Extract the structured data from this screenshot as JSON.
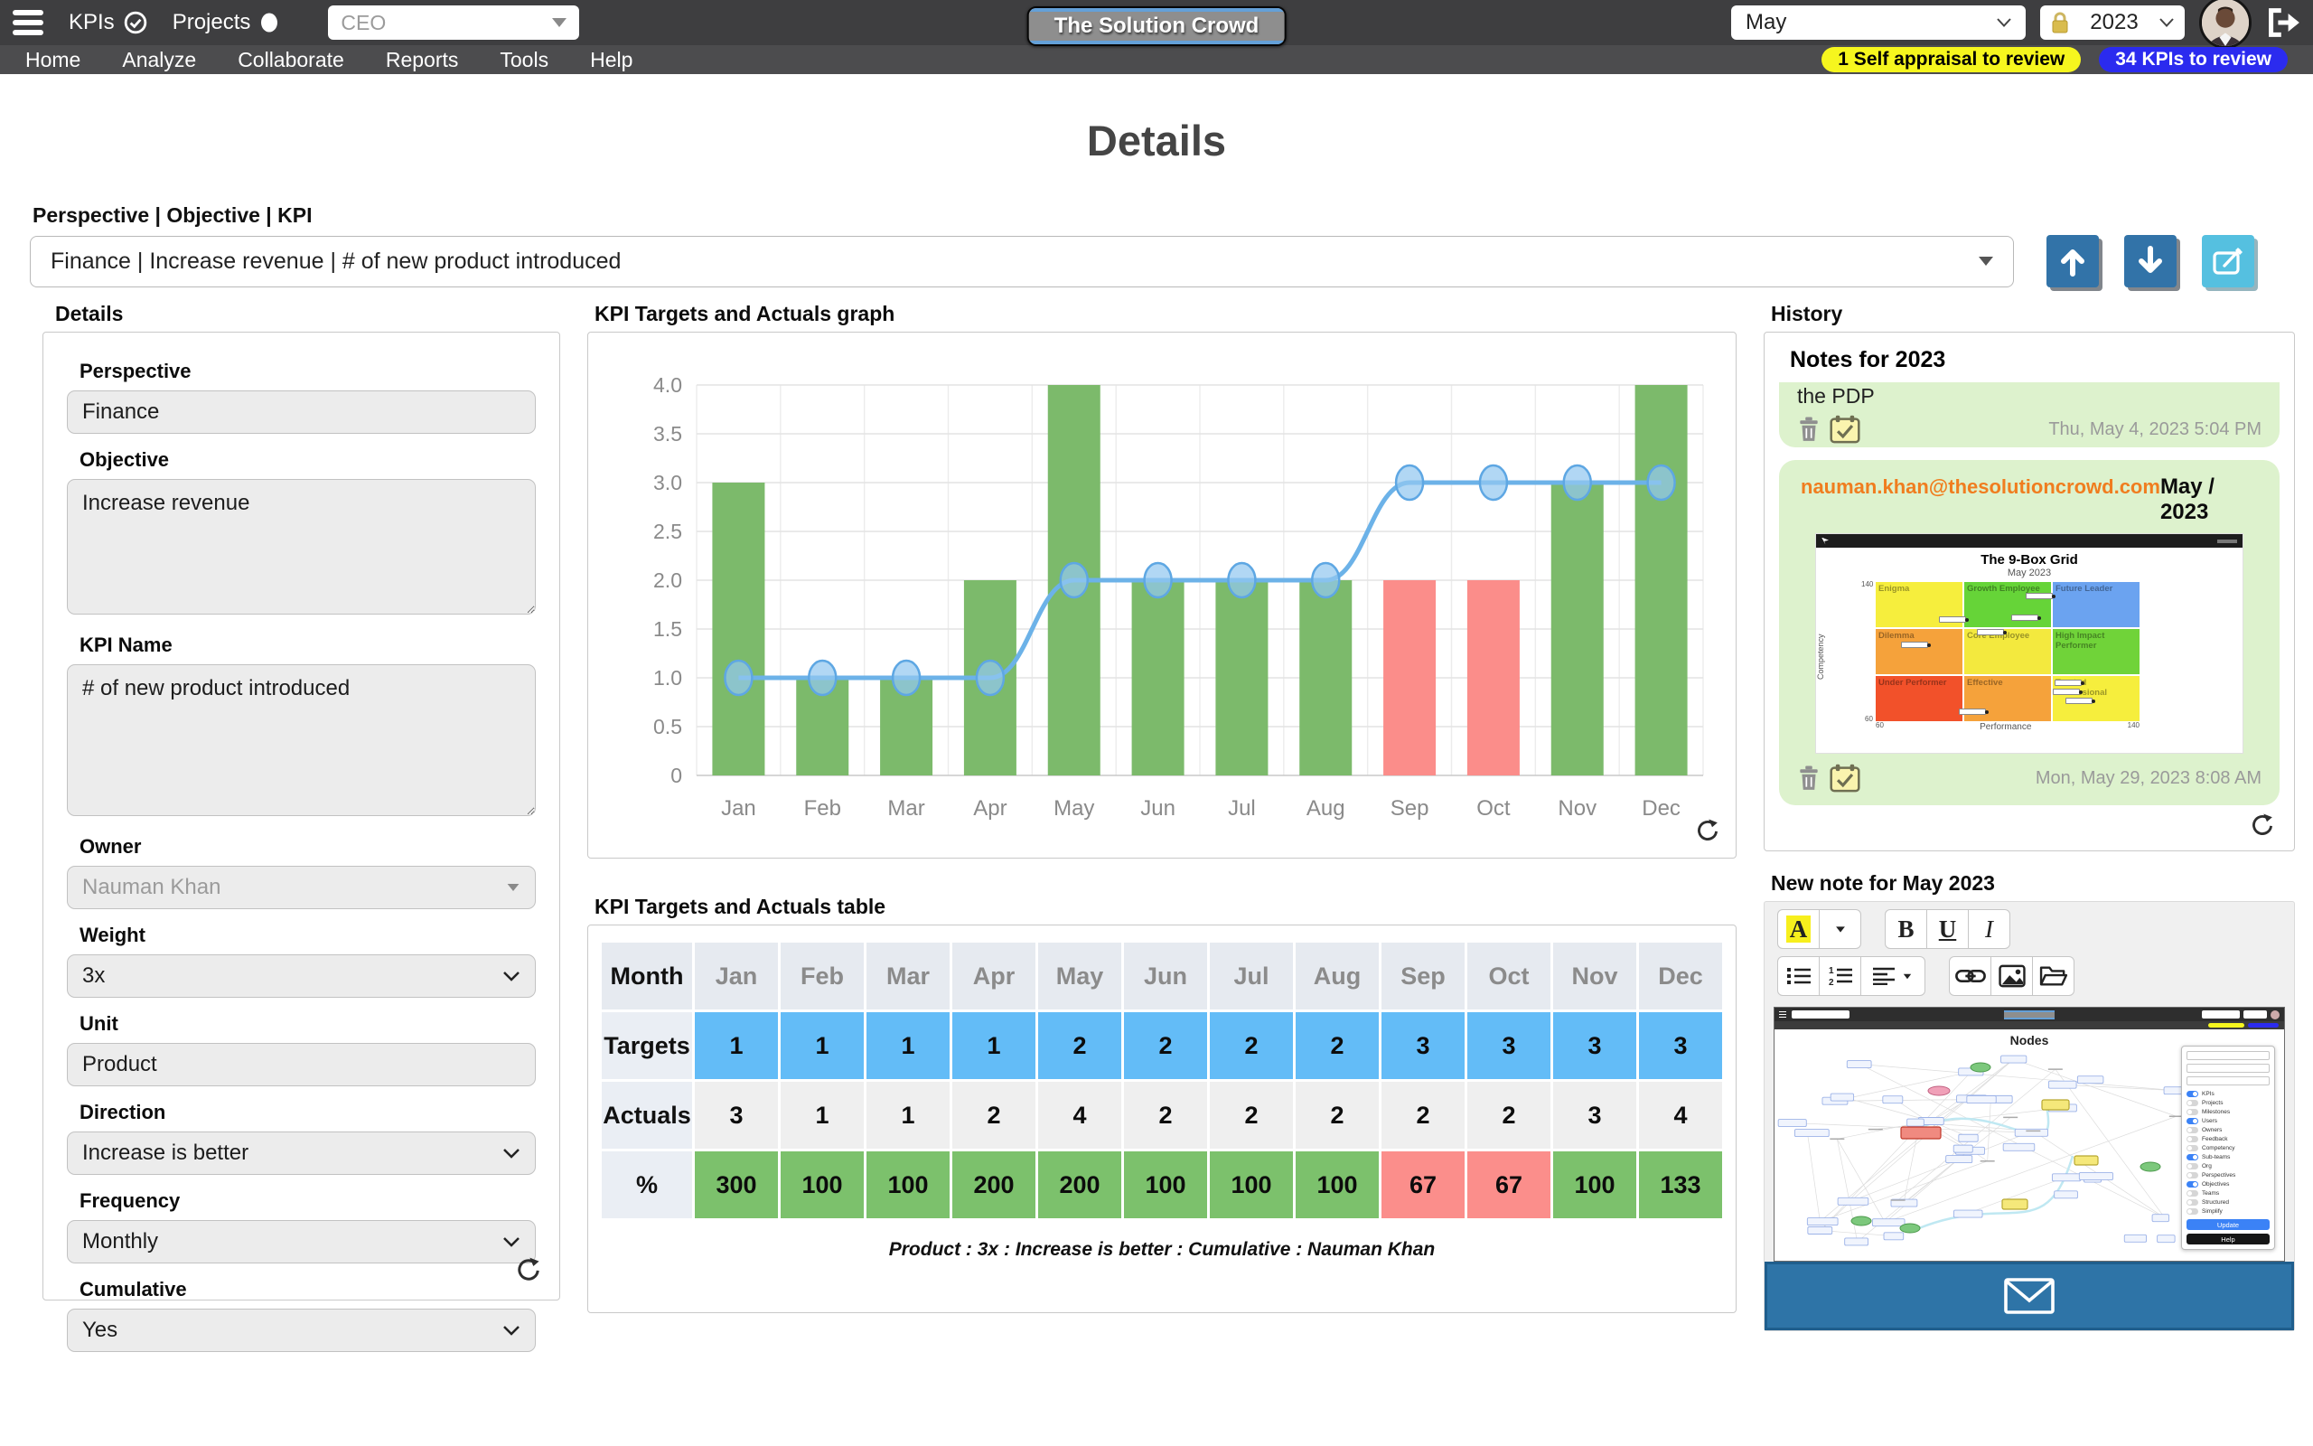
{
  "colors": {
    "topbar_bg": "#3e3e40",
    "navbar_bg": "#4c4c4e",
    "accent_blue": "#3273a8",
    "edit_cyan": "#55c0e0",
    "badge_yellow": "#f6f61e",
    "badge_blue": "#2b2bef",
    "bar_green": "#7cba6b",
    "bar_red": "#fb8d8a",
    "line_blue": "#6cb2e8",
    "target_cell_blue": "#63bcf7",
    "percent_green": "#7cc16c",
    "percent_red": "#fb8e8b",
    "note_green": "#ddf2cd",
    "email_orange": "#f07d1f",
    "send_blue": "#2e74a7",
    "highlight_yellow": "#f7ef1d"
  },
  "topbar": {
    "kpis_label": "KPIs",
    "projects_label": "Projects",
    "role_select": {
      "value": "CEO"
    },
    "brand": "The Solution Crowd",
    "month_select": {
      "value": "May"
    },
    "year_select": {
      "value": "2023"
    }
  },
  "nav": {
    "items": [
      "Home",
      "Analyze",
      "Collaborate",
      "Reports",
      "Tools",
      "Help"
    ],
    "badges": [
      {
        "label": "1 Self appraisal to review",
        "style": "yellow"
      },
      {
        "label": "34 KPIs to review",
        "style": "blue"
      }
    ]
  },
  "page": {
    "title": "Details"
  },
  "selector": {
    "label": "Perspective | Objective | KPI",
    "value": "Finance | Increase revenue | # of new product introduced"
  },
  "details_panel": {
    "heading": "Details",
    "fields": [
      {
        "label": "Perspective",
        "value": "Finance",
        "type": "input"
      },
      {
        "label": "Objective",
        "value": "Increase revenue",
        "type": "textarea",
        "height": 150
      },
      {
        "label": "KPI Name",
        "value": "# of new product introduced",
        "type": "textarea",
        "height": 168
      },
      {
        "label": "Owner",
        "value": "Nauman Khan",
        "type": "select_disabled"
      },
      {
        "label": "Weight",
        "value": "3x",
        "type": "select"
      },
      {
        "label": "Unit",
        "value": "Product",
        "type": "input"
      },
      {
        "label": "Direction",
        "value": "Increase is better",
        "type": "select"
      },
      {
        "label": "Frequency",
        "value": "Monthly",
        "type": "select"
      },
      {
        "label": "Cumulative",
        "value": "Yes",
        "type": "select"
      }
    ]
  },
  "chart_section": {
    "heading": "KPI Targets and Actuals graph"
  },
  "chart_data": {
    "type": "bar",
    "categories": [
      "Jan",
      "Feb",
      "Mar",
      "Apr",
      "May",
      "Jun",
      "Jul",
      "Aug",
      "Sep",
      "Oct",
      "Nov",
      "Dec"
    ],
    "series": [
      {
        "name": "Actuals",
        "type": "bar",
        "values": [
          3,
          1,
          1,
          2,
          4,
          2,
          2,
          2,
          2,
          2,
          3,
          4
        ]
      },
      {
        "name": "Targets",
        "type": "line",
        "values": [
          1,
          1,
          1,
          1,
          2,
          2,
          2,
          2,
          3,
          3,
          3,
          3
        ]
      }
    ],
    "ylim": [
      0,
      4
    ],
    "ytick_step": 0.5,
    "grid": true,
    "bar_rule": "green when actual >= target, red otherwise",
    "title": "KPI Targets and Actuals graph",
    "xlabel": "",
    "ylabel": ""
  },
  "table_section": {
    "heading": "KPI Targets and Actuals table",
    "month_header": "Month",
    "row_labels": {
      "targets": "Targets",
      "actuals": "Actuals",
      "percent": "%"
    },
    "months": [
      "Jan",
      "Feb",
      "Mar",
      "Apr",
      "May",
      "Jun",
      "Jul",
      "Aug",
      "Sep",
      "Oct",
      "Nov",
      "Dec"
    ],
    "targets": [
      1,
      1,
      1,
      1,
      2,
      2,
      2,
      2,
      3,
      3,
      3,
      3
    ],
    "actuals": [
      3,
      1,
      1,
      2,
      4,
      2,
      2,
      2,
      2,
      2,
      3,
      4
    ],
    "percent": [
      300,
      100,
      100,
      200,
      200,
      100,
      100,
      100,
      67,
      67,
      100,
      133
    ],
    "caption": "Product : 3x : Increase is better : Cumulative : Nauman Khan"
  },
  "history": {
    "heading": "History",
    "notes_title": "Notes for 2023",
    "note1": {
      "text_fragment": "the PDP",
      "timestamp": "Thu, May 4, 2023 5:04 PM"
    },
    "note2": {
      "email": "nauman.khan@thesolutioncrowd.com",
      "period": "May / 2023",
      "timestamp": "Mon, May 29, 2023 8:08 AM",
      "ninebox": {
        "title": "The 9-Box Grid",
        "subtitle": "May 2023",
        "y_axis": "Competency",
        "x_axis": "Performance",
        "y_max": "140",
        "y_min": "60",
        "x_min": "60",
        "x_max": "140",
        "cells": [
          {
            "label": "Enigma",
            "color": "#f6ee3d"
          },
          {
            "label": "Growth Employee",
            "color": "#66d438"
          },
          {
            "label": "Future Leader",
            "color": "#6ba3f0"
          },
          {
            "label": "Dilemma",
            "color": "#f5a23b"
          },
          {
            "label": "Core Employee",
            "color": "#f3e93e"
          },
          {
            "label": "High Impact Performer",
            "color": "#70d339"
          },
          {
            "label": "Under Performer",
            "color": "#f2512a"
          },
          {
            "label": "Effective",
            "color": "#f5a23b"
          },
          {
            "label": "Trusted Professional",
            "color": "#f6ee3d"
          }
        ]
      }
    }
  },
  "new_note": {
    "heading": "New note for May 2023",
    "toolbar": {
      "font_color": "A",
      "bold": "B",
      "underline": "U",
      "italic": "I"
    },
    "attachment": {
      "title": "Nodes",
      "toggles": [
        "KPIs",
        "Projects",
        "Milestones",
        "Users",
        "Owners",
        "Feedback",
        "Competency",
        "Sub-teams",
        "Org",
        "Perspectives",
        "Objectives",
        "Teams",
        "Structured",
        "Simplify"
      ],
      "toggles_on": [
        0,
        3,
        7,
        10
      ],
      "buttons": [
        "Update",
        "Help"
      ]
    }
  }
}
